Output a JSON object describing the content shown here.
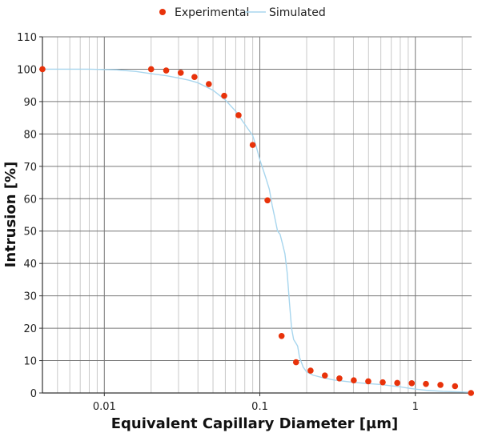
{
  "chart_data": {
    "type": "scatter",
    "xlabel": "Equivalent Capillary Diameter [µm]",
    "ylabel": "Intrusion [%]",
    "x_scale": "log",
    "xlim": [
      0.004,
      2.3
    ],
    "ylim": [
      0,
      110
    ],
    "grid": true,
    "legend_position": "top-center",
    "x_tick_labels": [
      "0.01",
      "0.1",
      "1"
    ],
    "x_tick_values": [
      0.01,
      0.1,
      1
    ],
    "y_ticks": [
      0,
      10,
      20,
      30,
      40,
      50,
      60,
      70,
      80,
      90,
      100,
      110
    ],
    "colors": {
      "experimental": "#e8320a",
      "simulated": "#a8d6ee",
      "major_grid": "#777777",
      "minor_grid": "#c9c9c9",
      "axis": "#333333"
    },
    "series": [
      {
        "name": "Experimental",
        "kind": "scatter",
        "x": [
          0.004,
          0.02,
          0.025,
          0.031,
          0.038,
          0.047,
          0.059,
          0.073,
          0.09,
          0.112,
          0.138,
          0.171,
          0.212,
          0.262,
          0.325,
          0.402,
          0.498,
          0.617,
          0.765,
          0.948,
          1.17,
          1.45,
          1.8,
          2.28
        ],
        "y": [
          100,
          100,
          99.6,
          98.9,
          97.6,
          95.4,
          91.8,
          85.8,
          76.6,
          59.5,
          17.6,
          9.5,
          6.9,
          5.4,
          4.5,
          3.9,
          3.6,
          3.3,
          3.1,
          3.0,
          2.8,
          2.5,
          2.1,
          0
        ]
      },
      {
        "name": "Simulated",
        "kind": "line",
        "x": [
          0.004,
          0.008,
          0.012,
          0.016,
          0.02,
          0.025,
          0.03,
          0.035,
          0.04,
          0.05,
          0.06,
          0.07,
          0.08,
          0.09,
          0.095,
          0.1,
          0.105,
          0.11,
          0.115,
          0.12,
          0.125,
          0.13,
          0.135,
          0.14,
          0.145,
          0.15,
          0.155,
          0.16,
          0.165,
          0.17,
          0.175,
          0.18,
          0.19,
          0.2,
          0.22,
          0.25,
          0.3,
          0.4,
          0.5,
          0.6,
          0.7,
          0.8,
          0.9,
          1.0,
          1.2,
          1.5,
          2.0,
          2.3
        ],
        "y": [
          100,
          100,
          99.8,
          99.3,
          98.6,
          98.0,
          97.3,
          96.6,
          95.8,
          93.5,
          90.5,
          87.0,
          83.0,
          79.5,
          76.0,
          72.0,
          69.0,
          66.0,
          63.0,
          58.0,
          54.0,
          50.0,
          49.0,
          46.0,
          43.0,
          37.0,
          28.0,
          20.0,
          16.5,
          15.5,
          14.5,
          11.0,
          8.0,
          6.5,
          5.5,
          4.8,
          4.0,
          3.3,
          2.9,
          2.6,
          2.2,
          1.9,
          1.5,
          1.2,
          0.8,
          0.5,
          0.3,
          0.2
        ]
      }
    ]
  }
}
